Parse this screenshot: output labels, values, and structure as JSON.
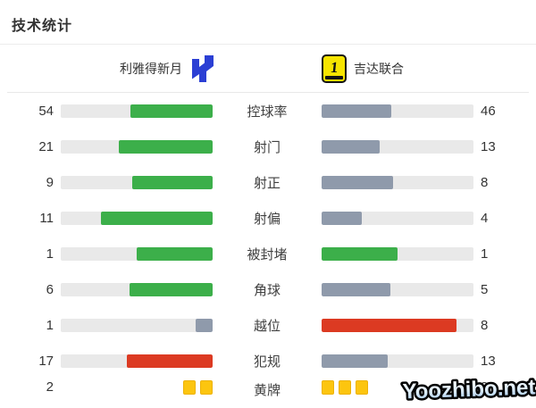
{
  "title": "技术统计",
  "teams": {
    "home": {
      "name": "利雅得新月",
      "logo": "al-hilal-crest",
      "logo_color": "#2b3fd4"
    },
    "away": {
      "name": "吉达联合",
      "logo": "al-ittihad-crest",
      "logo_bg": "#f6e400",
      "logo_fg": "#141414",
      "logo_number": "1"
    }
  },
  "palette": {
    "green": "#3caf4a",
    "slate": "#8f9aab",
    "red": "#dc3a22",
    "yellow": "#fcc50f",
    "track": "#e9e9e9"
  },
  "rows": [
    {
      "label": "控球率",
      "home": 54,
      "away": 46,
      "home_color": "green",
      "away_color": "slate",
      "type": "bar"
    },
    {
      "label": "射门",
      "home": 21,
      "away": 13,
      "home_color": "green",
      "away_color": "slate",
      "type": "bar"
    },
    {
      "label": "射正",
      "home": 9,
      "away": 8,
      "home_color": "green",
      "away_color": "slate",
      "type": "bar"
    },
    {
      "label": "射偏",
      "home": 11,
      "away": 4,
      "home_color": "green",
      "away_color": "slate",
      "type": "bar"
    },
    {
      "label": "被封堵",
      "home": 1,
      "away": 1,
      "home_color": "green",
      "away_color": "green",
      "type": "bar"
    },
    {
      "label": "角球",
      "home": 6,
      "away": 5,
      "home_color": "green",
      "away_color": "slate",
      "type": "bar"
    },
    {
      "label": "越位",
      "home": 1,
      "away": 8,
      "home_color": "slate",
      "away_color": "red",
      "type": "bar"
    },
    {
      "label": "犯规",
      "home": 17,
      "away": 13,
      "home_color": "red",
      "away_color": "slate",
      "type": "bar"
    },
    {
      "label": "黄牌",
      "home": 2,
      "away": 3,
      "home_color": "yellow",
      "away_color": "yellow",
      "type": "cards"
    }
  ],
  "chart_data": {
    "type": "bar",
    "title": "技术统计",
    "categories": [
      "控球率",
      "射门",
      "射正",
      "射偏",
      "被封堵",
      "角球",
      "越位",
      "犯规",
      "黄牌"
    ],
    "series": [
      {
        "name": "利雅得新月",
        "values": [
          54,
          21,
          9,
          11,
          1,
          6,
          1,
          17,
          2
        ]
      },
      {
        "name": "吉达联合",
        "values": [
          46,
          13,
          8,
          4,
          1,
          5,
          8,
          13,
          3
        ]
      }
    ],
    "layout": "mirrored horizontal bars; each bar fill fraction = value / (home + away); last category shown as yellow card icons",
    "legend_position": "top",
    "grid": false
  },
  "watermark": "Yoozhibo.net"
}
